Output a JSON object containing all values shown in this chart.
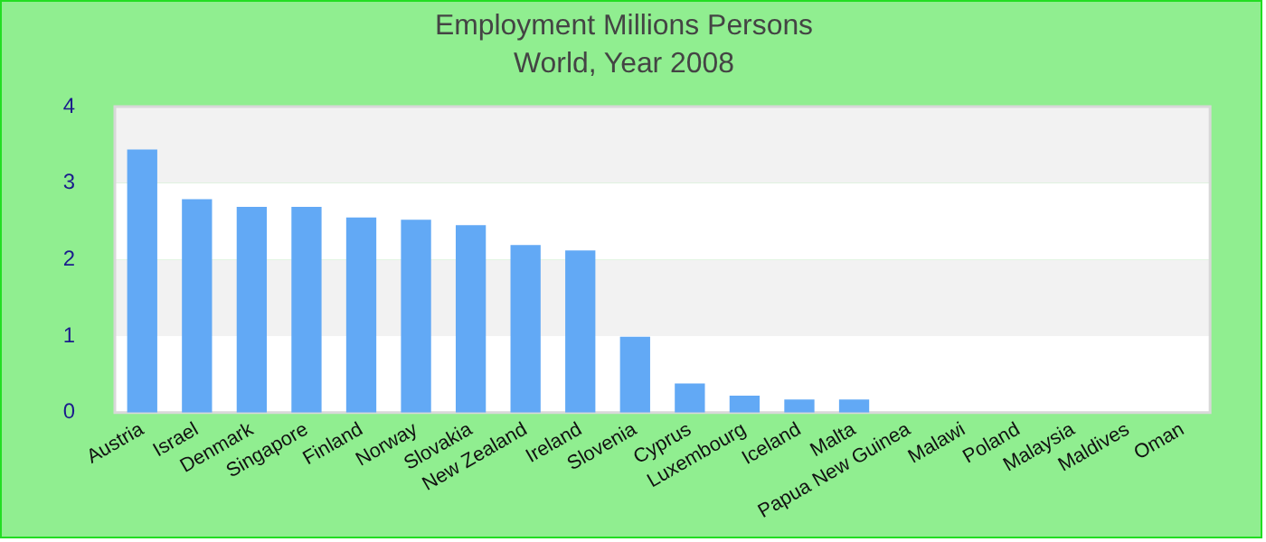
{
  "chart_data": {
    "type": "bar",
    "title": "Employment Millions Persons",
    "subtitle": "World, Year 2008",
    "categories": [
      "Austria",
      "Israel",
      "Denmark",
      "Singapore",
      "Finland",
      "Norway",
      "Slovakia",
      "New Zealand",
      "Ireland",
      "Slovenia",
      "Cyprus",
      "Luxembourg",
      "Iceland",
      "Malta",
      "Papua New Guinea",
      "Malawi",
      "Poland",
      "Malaysia",
      "Maldives",
      "Oman"
    ],
    "values": [
      3.44,
      2.79,
      2.69,
      2.69,
      2.55,
      2.52,
      2.45,
      2.19,
      2.12,
      0.99,
      0.38,
      0.22,
      0.17,
      0.17,
      null,
      null,
      null,
      null,
      null,
      null
    ],
    "color": "#62a9f5",
    "ylim": [
      0,
      4
    ],
    "yticks": [
      0,
      1,
      2,
      3,
      4
    ],
    "legend": false
  }
}
